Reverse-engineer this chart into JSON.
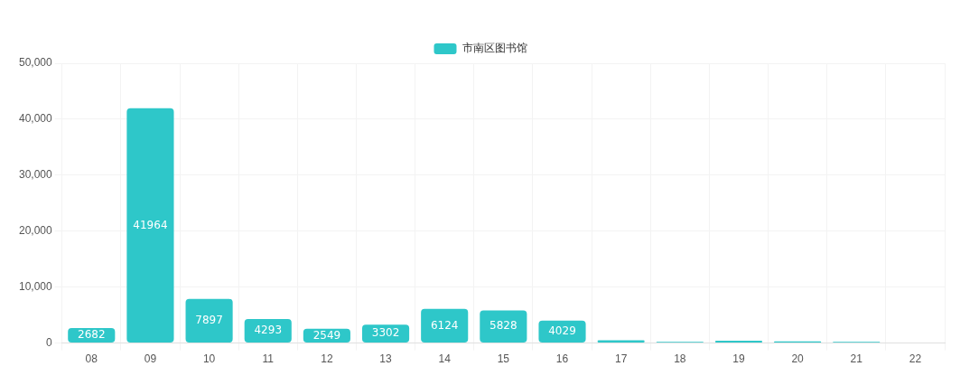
{
  "chart_data": {
    "type": "bar",
    "categories": [
      "08",
      "09",
      "10",
      "11",
      "12",
      "13",
      "14",
      "15",
      "16",
      "17",
      "18",
      "19",
      "20",
      "21",
      "22"
    ],
    "series": [
      {
        "name": "市南区图书馆",
        "color": "#2ec7c9",
        "values": [
          2682,
          41964,
          7897,
          4293,
          2549,
          3302,
          6124,
          5828,
          4029,
          500,
          200,
          400,
          300,
          200,
          100
        ],
        "value_labels": [
          "2682",
          "41964",
          "7897",
          "4293",
          "2549",
          "3302",
          "6124",
          "5828",
          "4029",
          null,
          null,
          null,
          null,
          null,
          null
        ]
      }
    ],
    "ylim": [
      0,
      50000
    ],
    "yticks": [
      0,
      {
        "value": 10000,
        "label": "10,000"
      },
      {
        "value": 20000,
        "label": "20,000"
      },
      {
        "value": 30000,
        "label": "30,000"
      },
      {
        "value": 40000,
        "label": "40,000"
      },
      {
        "value": 50000,
        "label": "50,000"
      }
    ],
    "grid": true,
    "legend": "top"
  }
}
